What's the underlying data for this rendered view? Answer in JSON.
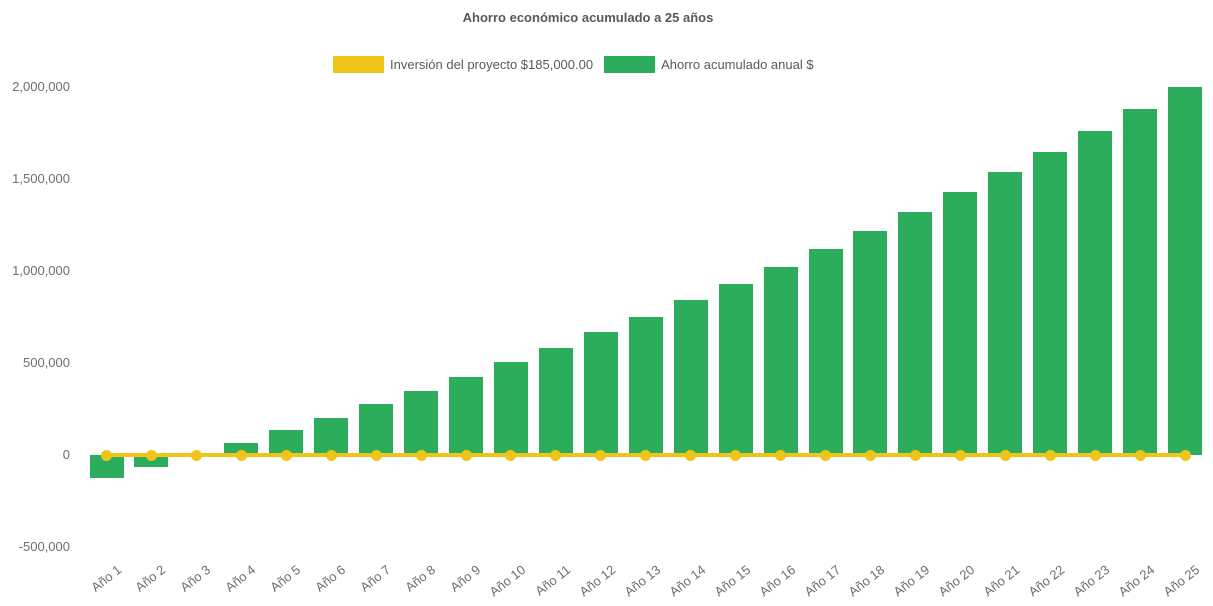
{
  "title": "Ahorro económico acumulado a 25 años",
  "legend": {
    "items": [
      {
        "label": "Inversión del proyecto $185,000.00",
        "color": "#f0c419",
        "series_type": "line"
      },
      {
        "label": "Ahorro acumulado anual $",
        "color": "#2bad5c",
        "series_type": "bar"
      }
    ]
  },
  "colors": {
    "bar_green": "#2bad5c",
    "line_yellow": "#f0c419",
    "title_text": "#595959",
    "axis_text": "#6e6e6e",
    "background": "#ffffff"
  },
  "chart_data": {
    "type": "bar",
    "title": "Ahorro económico acumulado a 25 años",
    "xlabel": "",
    "ylabel": "",
    "ylim": [
      -500000,
      2000000
    ],
    "grid": false,
    "legend_position": "top",
    "categories": [
      "Año 1",
      "Año 2",
      "Año 3",
      "Año 4",
      "Año 5",
      "Año 6",
      "Año 7",
      "Año 8",
      "Año 9",
      "Año 10",
      "Año 11",
      "Año 12",
      "Año 13",
      "Año 14",
      "Año 15",
      "Año 16",
      "Año 17",
      "Año 18",
      "Año 19",
      "Año 20",
      "Año 21",
      "Año 22",
      "Año 23",
      "Año 24",
      "Año 25"
    ],
    "y_ticks": [
      {
        "label": "2,000,000",
        "value": 2000000
      },
      {
        "label": "1,500,000",
        "value": 1500000
      },
      {
        "label": "1,000,000",
        "value": 1000000
      },
      {
        "label": "500,000",
        "value": 500000
      },
      {
        "label": "0",
        "value": 0
      },
      {
        "label": "-500,000",
        "value": -500000
      }
    ],
    "series": [
      {
        "name": "Inversión del proyecto $185,000.00",
        "type": "line",
        "color": "#f0c419",
        "investment_amount": 185000,
        "rendered_value": 0,
        "markers": true
      },
      {
        "name": "Ahorro acumulado anual $",
        "type": "bar",
        "color": "#2bad5c",
        "values": [
          -125000,
          -63200,
          500,
          66000,
          133500,
          203100,
          274700,
          348500,
          424500,
          502800,
          583500,
          666500,
          752100,
          840200,
          930900,
          1024400,
          1120700,
          1219900,
          1322000,
          1427200,
          1535600,
          1647200,
          1762200,
          1880600,
          2002600
        ]
      }
    ]
  }
}
